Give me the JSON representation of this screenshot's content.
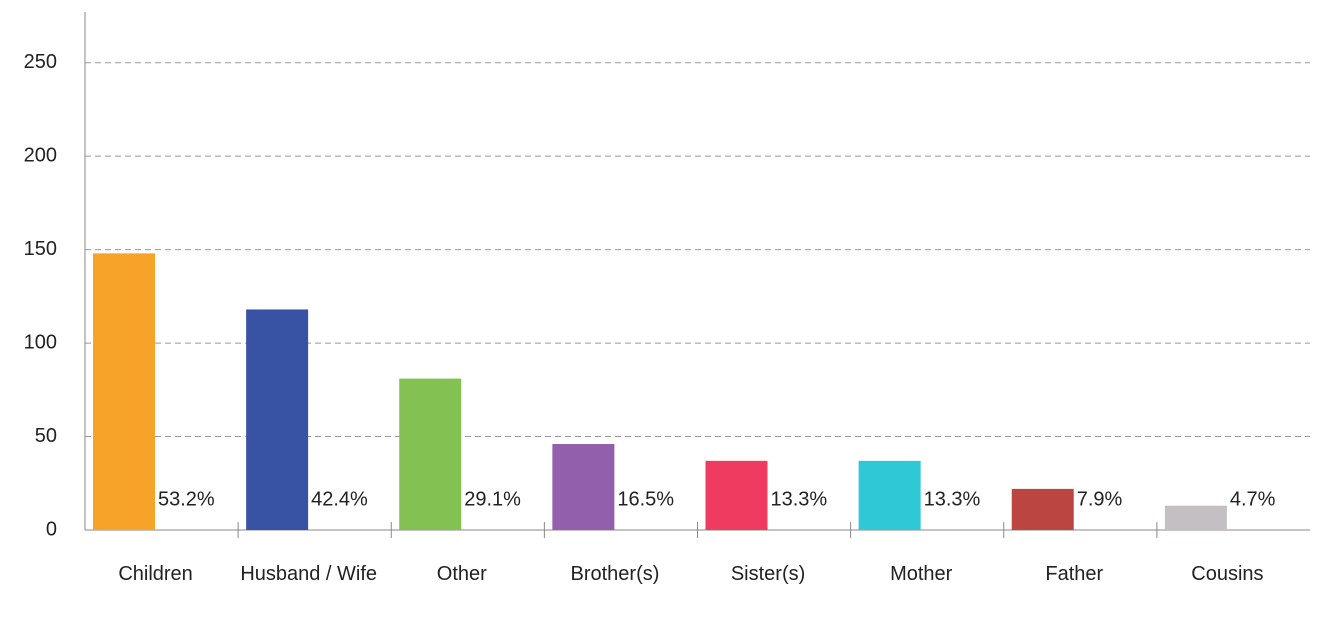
{
  "chart_data": {
    "type": "bar",
    "categories": [
      "Children",
      "Husband / Wife",
      "Other",
      "Brother(s)",
      "Sister(s)",
      "Mother",
      "Father",
      "Cousins"
    ],
    "values": [
      148,
      118,
      81,
      46,
      37,
      37,
      22,
      13
    ],
    "value_labels": [
      "53.2%",
      "42.4%",
      "29.1%",
      "16.5%",
      "13.3%",
      "13.3%",
      "7.9%",
      "4.7%"
    ],
    "colors": [
      "#f7a229",
      "#3953a4",
      "#82c152",
      "#915fab",
      "#ef3b5f",
      "#2ec8d6",
      "#bb4641",
      "#c4bfc3"
    ],
    "ylim": [
      0,
      275
    ],
    "yticks": [
      0,
      50,
      100,
      150,
      200,
      250
    ],
    "grid": true
  }
}
